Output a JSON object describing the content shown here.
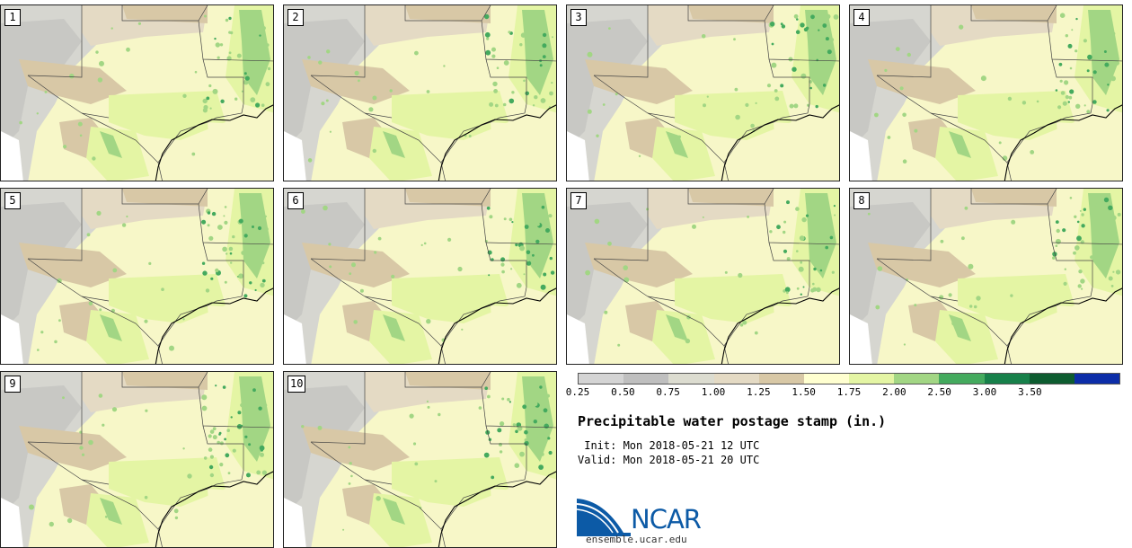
{
  "panels": [
    {
      "number": "1"
    },
    {
      "number": "2"
    },
    {
      "number": "3"
    },
    {
      "number": "4"
    },
    {
      "number": "5"
    },
    {
      "number": "6"
    },
    {
      "number": "7"
    },
    {
      "number": "8"
    },
    {
      "number": "9"
    },
    {
      "number": "10"
    }
  ],
  "colorbar": {
    "labels": [
      "0.25",
      "0.50",
      "0.75",
      "1.00",
      "1.25",
      "1.50",
      "1.75",
      "2.00",
      "2.50",
      "3.00",
      "3.50"
    ],
    "colors": [
      "#d4d4d4",
      "#bfbfbf",
      "#dcdcd0",
      "#e4dac4",
      "#d8c8a6",
      "#ffffd0",
      "#e4f5a4",
      "#a2d684",
      "#44aa5e",
      "#17804a",
      "#0d5c30",
      "#0c2da8"
    ]
  },
  "title": "Precipitable water postage stamp (in.)",
  "init": " Init: Mon 2018-05-21 12 UTC",
  "valid": "Valid: Mon 2018-05-21 20 UTC",
  "logo": {
    "name": "NCAR",
    "website": "ensemble.ucar.edu"
  }
}
